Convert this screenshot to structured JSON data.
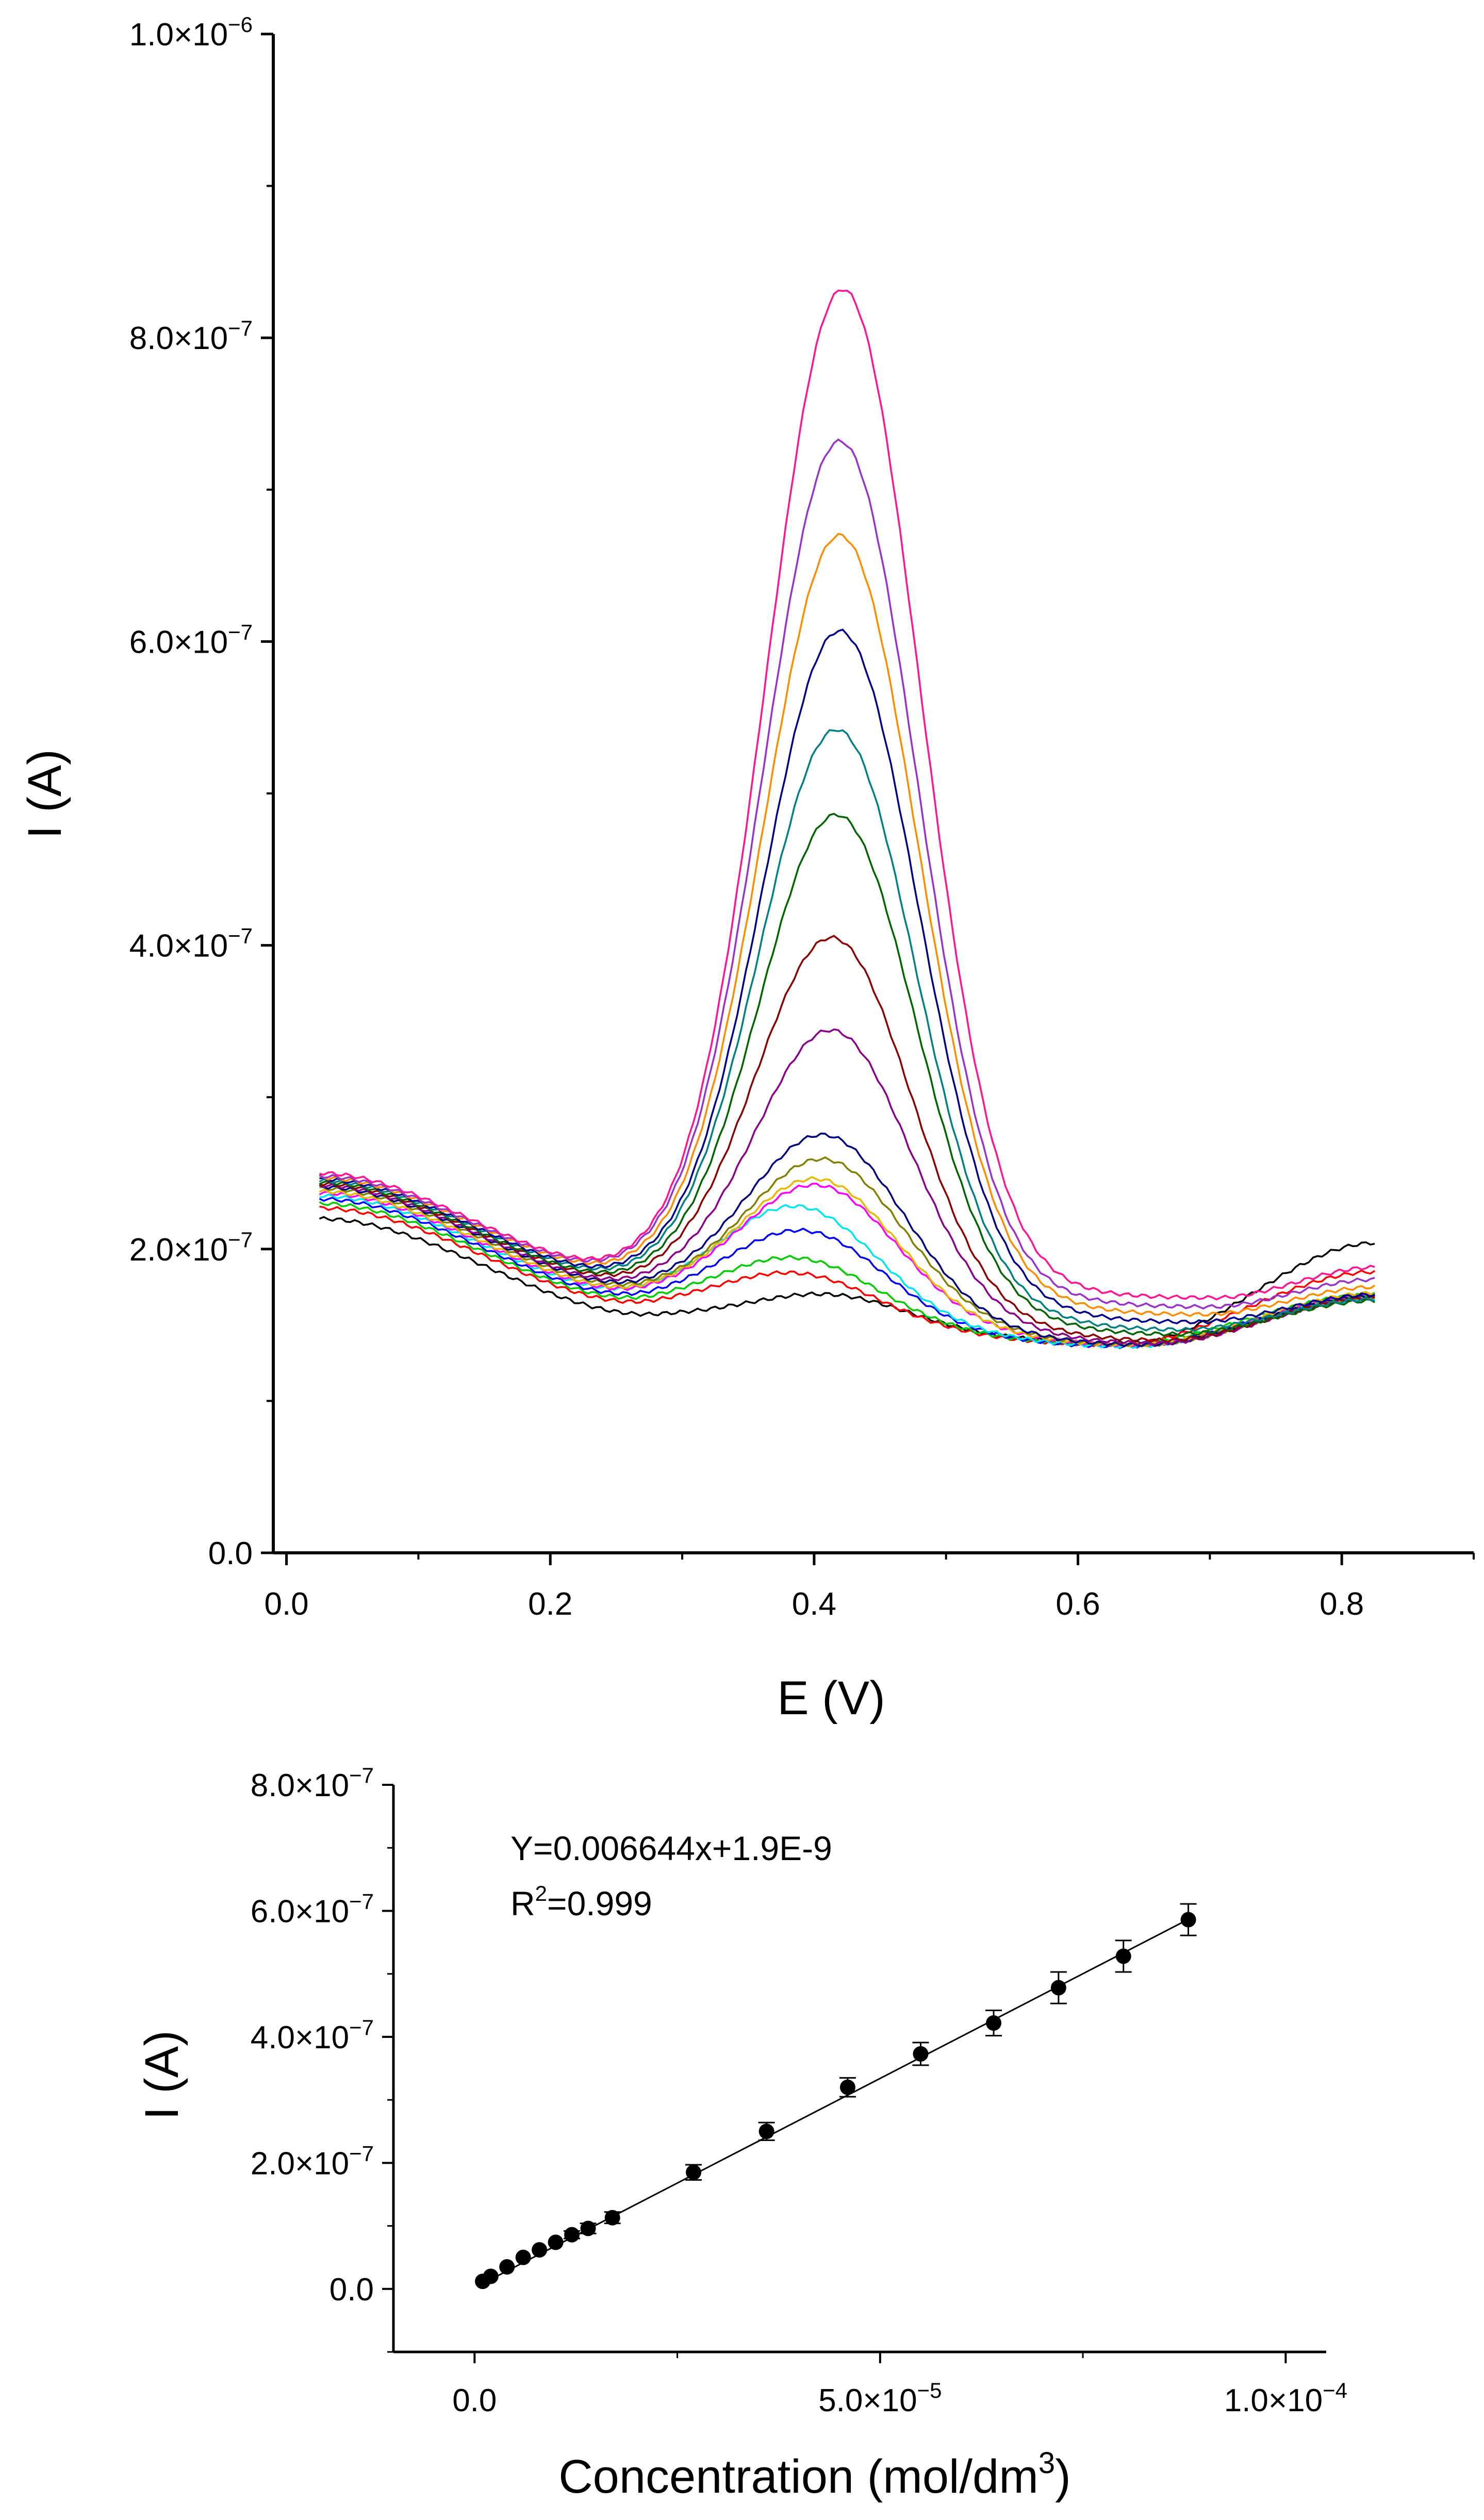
{
  "chart_data": [
    {
      "type": "line",
      "title": "",
      "xlabel": "E (V)",
      "ylabel": "I (A)",
      "xlim": [
        -0.01,
        0.9
      ],
      "ylim": [
        0,
        1e-06
      ],
      "x_ticks": [
        {
          "value": 0.0,
          "label": "0.0"
        },
        {
          "value": 0.2,
          "label": "0.2"
        },
        {
          "value": 0.4,
          "label": "0.4"
        },
        {
          "value": 0.6,
          "label": "0.6"
        },
        {
          "value": 0.8,
          "label": "0.8"
        }
      ],
      "y_ticks": [
        {
          "value": 0,
          "label": "0.0",
          "exp": ""
        },
        {
          "value": 2e-07,
          "label": "2.0×10",
          "exp": "−7"
        },
        {
          "value": 4e-07,
          "label": "4.0×10",
          "exp": "−7"
        },
        {
          "value": 6e-07,
          "label": "6.0×10",
          "exp": "−7"
        },
        {
          "value": 8e-07,
          "label": "8.0×10",
          "exp": "−7"
        },
        {
          "value": 1e-06,
          "label": "1.0×10",
          "exp": "−6"
        }
      ],
      "x_range": [
        0.025,
        0.825
      ],
      "series": [
        {
          "name": "s1",
          "color": "#000000",
          "start": 2.2e-07,
          "valley": 1.56e-07,
          "valley_x": 0.28,
          "peak": 1.7e-07,
          "peak_x": 0.415,
          "minimum": 1.38e-07,
          "minimum_x": 0.64,
          "end": 2.04e-07
        },
        {
          "name": "s2",
          "color": "#ff0000",
          "start": 2.27e-07,
          "valley": 1.62e-07,
          "valley_x": 0.28,
          "peak": 1.84e-07,
          "peak_x": 0.39,
          "minimum": 1.37e-07,
          "minimum_x": 0.63,
          "end": 1.85e-07
        },
        {
          "name": "s3",
          "color": "#00cc00",
          "start": 2.3e-07,
          "valley": 1.64e-07,
          "valley_x": 0.28,
          "peak": 1.94e-07,
          "peak_x": 0.39,
          "minimum": 1.37e-07,
          "minimum_x": 0.63,
          "end": 1.7e-07
        },
        {
          "name": "s4",
          "color": "#0000ff",
          "start": 2.33e-07,
          "valley": 1.66e-07,
          "valley_x": 0.28,
          "peak": 2.12e-07,
          "peak_x": 0.395,
          "minimum": 1.36e-07,
          "minimum_x": 0.635,
          "end": 1.68e-07
        },
        {
          "name": "s5",
          "color": "#00e5ee",
          "start": 2.35e-07,
          "valley": 1.68e-07,
          "valley_x": 0.28,
          "peak": 2.28e-07,
          "peak_x": 0.39,
          "minimum": 1.36e-07,
          "minimum_x": 0.64,
          "end": 1.67e-07
        },
        {
          "name": "s6",
          "color": "#ff00ff",
          "start": 2.37e-07,
          "valley": 1.7e-07,
          "valley_x": 0.275,
          "peak": 2.42e-07,
          "peak_x": 0.405,
          "minimum": 1.37e-07,
          "minimum_x": 0.645,
          "end": 1.7e-07
        },
        {
          "name": "s7",
          "color": "#e6b800",
          "start": 2.38e-07,
          "valley": 1.71e-07,
          "valley_x": 0.275,
          "peak": 2.46e-07,
          "peak_x": 0.405,
          "minimum": 1.37e-07,
          "minimum_x": 0.645,
          "end": 1.71e-07
        },
        {
          "name": "s8",
          "color": "#808000",
          "start": 2.4e-07,
          "valley": 1.73e-07,
          "valley_x": 0.275,
          "peak": 2.59e-07,
          "peak_x": 0.41,
          "minimum": 1.37e-07,
          "minimum_x": 0.65,
          "end": 1.68e-07
        },
        {
          "name": "s9",
          "color": "#000080",
          "start": 2.41e-07,
          "valley": 1.74e-07,
          "valley_x": 0.275,
          "peak": 2.75e-07,
          "peak_x": 0.41,
          "minimum": 1.37e-07,
          "minimum_x": 0.65,
          "end": 1.69e-07
        },
        {
          "name": "s10",
          "color": "#8b008b",
          "start": 2.42e-07,
          "valley": 1.76e-07,
          "valley_x": 0.27,
          "peak": 3.44e-07,
          "peak_x": 0.415,
          "minimum": 1.38e-07,
          "minimum_x": 0.66,
          "end": 1.68e-07
        },
        {
          "name": "s11",
          "color": "#8b0000",
          "start": 2.43e-07,
          "valley": 1.78e-07,
          "valley_x": 0.27,
          "peak": 4.05e-07,
          "peak_x": 0.415,
          "minimum": 1.4e-07,
          "minimum_x": 0.665,
          "end": 1.68e-07
        },
        {
          "name": "s12",
          "color": "#006400",
          "start": 2.44e-07,
          "valley": 1.8e-07,
          "valley_x": 0.265,
          "peak": 4.86e-07,
          "peak_x": 0.418,
          "minimum": 1.44e-07,
          "minimum_x": 0.675,
          "end": 1.66e-07
        },
        {
          "name": "s13",
          "color": "#008080",
          "start": 2.45e-07,
          "valley": 1.82e-07,
          "valley_x": 0.265,
          "peak": 5.42e-07,
          "peak_x": 0.418,
          "minimum": 1.47e-07,
          "minimum_x": 0.68,
          "end": 1.67e-07
        },
        {
          "name": "s14",
          "color": "#00008b",
          "start": 2.46e-07,
          "valley": 1.84e-07,
          "valley_x": 0.26,
          "peak": 6.07e-07,
          "peak_x": 0.42,
          "minimum": 1.52e-07,
          "minimum_x": 0.69,
          "end": 1.7e-07
        },
        {
          "name": "s15",
          "color": "#ff8c00",
          "start": 2.47e-07,
          "valley": 1.86e-07,
          "valley_x": 0.26,
          "peak": 6.7e-07,
          "peak_x": 0.42,
          "minimum": 1.57e-07,
          "minimum_x": 0.695,
          "end": 1.75e-07
        },
        {
          "name": "s16",
          "color": "#9932cc",
          "start": 2.48e-07,
          "valley": 1.88e-07,
          "valley_x": 0.255,
          "peak": 7.32e-07,
          "peak_x": 0.42,
          "minimum": 1.62e-07,
          "minimum_x": 0.7,
          "end": 1.8e-07
        },
        {
          "name": "s17",
          "color": "#ff1493",
          "start": 2.5e-07,
          "valley": 1.89e-07,
          "valley_x": 0.255,
          "peak": 8.32e-07,
          "peak_x": 0.422,
          "minimum": 1.68e-07,
          "minimum_x": 0.705,
          "end": 1.88e-07
        }
      ]
    },
    {
      "type": "scatter",
      "title": "",
      "xlabel": "Concentration (mol/dm",
      "xlabel_sup": "3",
      "xlabel_close": ")",
      "ylabel": "I (A)",
      "xlim": [
        -1e-05,
        0.000105
      ],
      "ylim": [
        -1e-07,
        8e-07
      ],
      "x_ticks": [
        {
          "value": 0,
          "label": "0.0",
          "exp": ""
        },
        {
          "value": 5e-05,
          "label": "5.0×10",
          "exp": "−5"
        },
        {
          "value": 0.0001,
          "label": "1.0×10",
          "exp": "−4"
        }
      ],
      "y_ticks": [
        {
          "value": 0,
          "label": "0.0",
          "exp": ""
        },
        {
          "value": 2e-07,
          "label": "2.0×10",
          "exp": "−7"
        },
        {
          "value": 4e-07,
          "label": "4.0×10",
          "exp": "−7"
        },
        {
          "value": 6e-07,
          "label": "6.0×10",
          "exp": "−7"
        },
        {
          "value": 8e-07,
          "label": "8.0×10",
          "exp": "−7"
        }
      ],
      "points": [
        {
          "x": 1e-06,
          "y": 1.2e-08,
          "err": 3e-09
        },
        {
          "x": 2e-06,
          "y": 2e-08,
          "err": 3e-09
        },
        {
          "x": 4e-06,
          "y": 3.5e-08,
          "err": 4e-09
        },
        {
          "x": 6e-06,
          "y": 5e-08,
          "err": 4e-09
        },
        {
          "x": 8e-06,
          "y": 6.2e-08,
          "err": 5e-09
        },
        {
          "x": 1e-05,
          "y": 7.4e-08,
          "err": 5e-09
        },
        {
          "x": 1.2e-05,
          "y": 8.6e-08,
          "err": 6e-09
        },
        {
          "x": 1.4e-05,
          "y": 9.6e-08,
          "err": 8e-09
        },
        {
          "x": 1.7e-05,
          "y": 1.13e-07,
          "err": 9e-09
        },
        {
          "x": 2.7e-05,
          "y": 1.85e-07,
          "err": 1.2e-08
        },
        {
          "x": 3.6e-05,
          "y": 2.5e-07,
          "err": 1.4e-08
        },
        {
          "x": 4.6e-05,
          "y": 3.2e-07,
          "err": 1.5e-08
        },
        {
          "x": 5.5e-05,
          "y": 3.73e-07,
          "err": 1.8e-08
        },
        {
          "x": 6.4e-05,
          "y": 4.22e-07,
          "err": 2e-08
        },
        {
          "x": 7.2e-05,
          "y": 4.78e-07,
          "err": 2.5e-08
        },
        {
          "x": 8e-05,
          "y": 5.28e-07,
          "err": 2.5e-08
        },
        {
          "x": 8.8e-05,
          "y": 5.86e-07,
          "err": 2.5e-08
        }
      ],
      "fit": {
        "x_start": 1e-06,
        "x_end": 8.8e-05,
        "slope": 0.006644,
        "intercept": 1.9e-09
      },
      "equation": "Y=0.006644x+1.9E-9",
      "r2_prefix": "R",
      "r2_sup": "2",
      "r2_value": "=0.999"
    }
  ]
}
